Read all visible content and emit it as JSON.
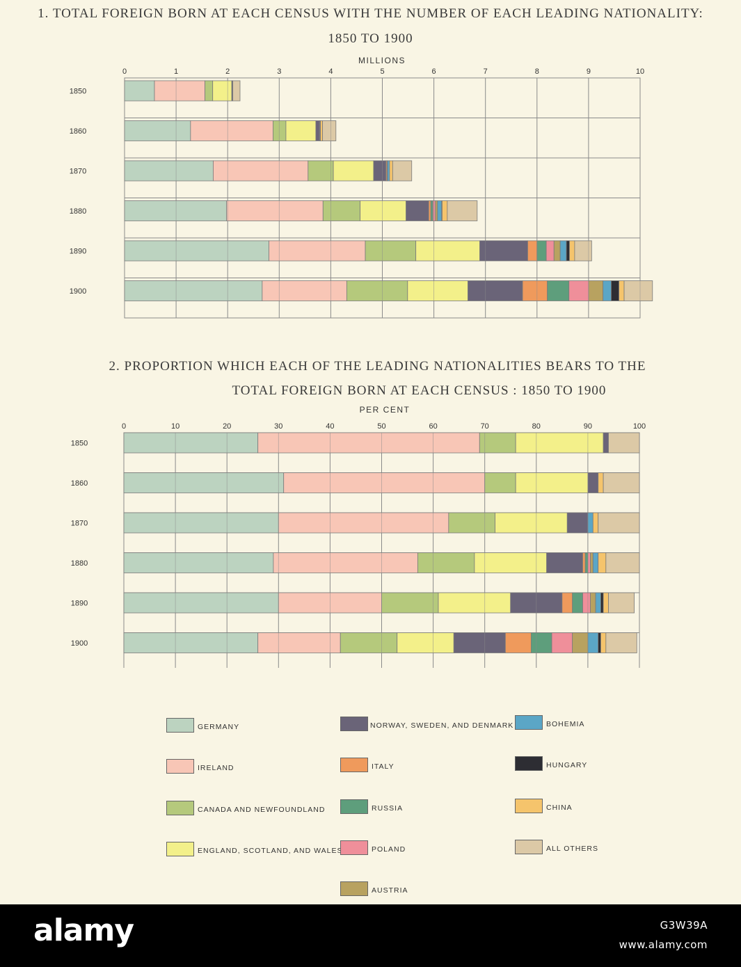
{
  "colors": {
    "Germany": "#bcd3c0",
    "Ireland": "#f8c6b6",
    "Canada": "#b5c97c",
    "England": "#f3f08a",
    "Norway": "#6a6478",
    "Italy": "#ef9a5c",
    "Russia": "#5e9e7c",
    "Poland": "#ef8f9a",
    "Austria": "#b8a260",
    "Bohemia": "#5ba6c6",
    "Hungary": "#2d2d33",
    "China": "#f5c46c",
    "Others": "#dcc9a6"
  },
  "legend": {
    "germany": "GERMANY",
    "ireland": "IRELAND",
    "canada": "CANADA AND NEWFOUNDLAND",
    "england": "ENGLAND, SCOTLAND, AND WALES",
    "norway": "NORWAY, SWEDEN, AND DENMARK",
    "italy": "ITALY",
    "russia": "RUSSIA",
    "poland": "POLAND",
    "austria": "AUSTRIA",
    "bohemia": "BOHEMIA",
    "hungary": "HUNGARY",
    "china": "CHINA",
    "others": "ALL OTHERS"
  },
  "chart_data": [
    {
      "type": "bar",
      "stacked": true,
      "orientation": "horizontal",
      "title": "1. TOTAL FOREIGN BORN AT EACH CENSUS WITH THE NUMBER OF EACH LEADING NATIONALITY:",
      "subtitle": "1850 TO 1900",
      "xlabel": "MILLIONS",
      "xlim": [
        0,
        10
      ],
      "x_ticks": [
        "0",
        "1",
        "2",
        "3",
        "4",
        "5",
        "6",
        "7",
        "8",
        "9",
        "10"
      ],
      "grid": true,
      "categories": [
        "1850",
        "1860",
        "1870",
        "1880",
        "1890",
        "1900"
      ],
      "series": [
        {
          "name": "GERMANY",
          "values": [
            0.58,
            1.28,
            1.72,
            1.98,
            2.8,
            2.67
          ]
        },
        {
          "name": "IRELAND",
          "values": [
            0.98,
            1.6,
            1.84,
            1.87,
            1.87,
            1.64
          ]
        },
        {
          "name": "CANADA AND NEWFOUNDLAND",
          "values": [
            0.15,
            0.25,
            0.49,
            0.72,
            0.98,
            1.18
          ]
        },
        {
          "name": "ENGLAND, SCOTLAND, AND WALES",
          "values": [
            0.37,
            0.58,
            0.78,
            0.89,
            1.24,
            1.17
          ]
        },
        {
          "name": "NORWAY, SWEDEN, AND DENMARK",
          "values": [
            0.02,
            0.07,
            0.24,
            0.44,
            0.93,
            1.06
          ]
        },
        {
          "name": "ITALY",
          "values": [
            0,
            0.01,
            0.02,
            0.04,
            0.18,
            0.48
          ]
        },
        {
          "name": "RUSSIA",
          "values": [
            0,
            0,
            0,
            0.04,
            0.18,
            0.42
          ]
        },
        {
          "name": "POLAND",
          "values": [
            0,
            0.01,
            0.01,
            0.05,
            0.15,
            0.38
          ]
        },
        {
          "name": "AUSTRIA",
          "values": [
            0,
            0,
            0,
            0.04,
            0.12,
            0.28
          ]
        },
        {
          "name": "BOHEMIA",
          "values": [
            0,
            0,
            0.04,
            0.08,
            0.12,
            0.16
          ]
        },
        {
          "name": "HUNGARY",
          "values": [
            0,
            0,
            0,
            0.01,
            0.06,
            0.15
          ]
        },
        {
          "name": "CHINA",
          "values": [
            0,
            0.04,
            0.06,
            0.1,
            0.1,
            0.1
          ]
        },
        {
          "name": "ALL OTHERS",
          "values": [
            0.14,
            0.26,
            0.37,
            0.58,
            0.33,
            0.55
          ]
        }
      ]
    },
    {
      "type": "bar",
      "stacked": true,
      "orientation": "horizontal",
      "title": "2. PROPORTION WHICH EACH OF THE LEADING NATIONALITIES BEARS TO THE",
      "subtitle": "TOTAL FOREIGN BORN AT EACH CENSUS : 1850 TO 1900",
      "xlabel": "PER CENT",
      "xlim": [
        0,
        100
      ],
      "x_ticks": [
        "0",
        "10",
        "20",
        "30",
        "40",
        "50",
        "60",
        "70",
        "80",
        "90",
        "100"
      ],
      "grid": true,
      "categories": [
        "1850",
        "1860",
        "1870",
        "1880",
        "1890",
        "1900"
      ],
      "series": [
        {
          "name": "GERMANY",
          "values": [
            26.0,
            31.0,
            30.0,
            29.0,
            30.0,
            26.0
          ]
        },
        {
          "name": "IRELAND",
          "values": [
            43.0,
            39.0,
            33.0,
            28.0,
            20.0,
            16.0
          ]
        },
        {
          "name": "CANADA AND NEWFOUNDLAND",
          "values": [
            7.0,
            6.0,
            9.0,
            11.0,
            11.0,
            11.0
          ]
        },
        {
          "name": "ENGLAND, SCOTLAND, AND WALES",
          "values": [
            17.0,
            14.0,
            14.0,
            14.0,
            14.0,
            11.0
          ]
        },
        {
          "name": "NORWAY, SWEDEN, AND DENMARK",
          "values": [
            1.0,
            2.0,
            4.0,
            7.0,
            10.0,
            10.0
          ]
        },
        {
          "name": "ITALY",
          "values": [
            0,
            0,
            0,
            0.5,
            2.0,
            5.0
          ]
        },
        {
          "name": "RUSSIA",
          "values": [
            0,
            0,
            0,
            0.5,
            2.0,
            4.0
          ]
        },
        {
          "name": "POLAND",
          "values": [
            0,
            0,
            0,
            0.5,
            1.5,
            4.0
          ]
        },
        {
          "name": "AUSTRIA",
          "values": [
            0,
            0,
            0,
            0.5,
            1.0,
            3.0
          ]
        },
        {
          "name": "BOHEMIA",
          "values": [
            0,
            0,
            1.0,
            1.0,
            1.0,
            2.0
          ]
        },
        {
          "name": "HUNGARY",
          "values": [
            0,
            0,
            0,
            0,
            0.5,
            0.5
          ]
        },
        {
          "name": "CHINA",
          "values": [
            0,
            1.0,
            1.0,
            1.5,
            1.0,
            1.0
          ]
        },
        {
          "name": "ALL OTHERS",
          "values": [
            6.0,
            7.0,
            8.0,
            6.5,
            5.0,
            6.0
          ]
        }
      ]
    }
  ],
  "footer": {
    "logo": "alamy",
    "image_id": "G3W39A",
    "site": "www.alamy.com"
  }
}
